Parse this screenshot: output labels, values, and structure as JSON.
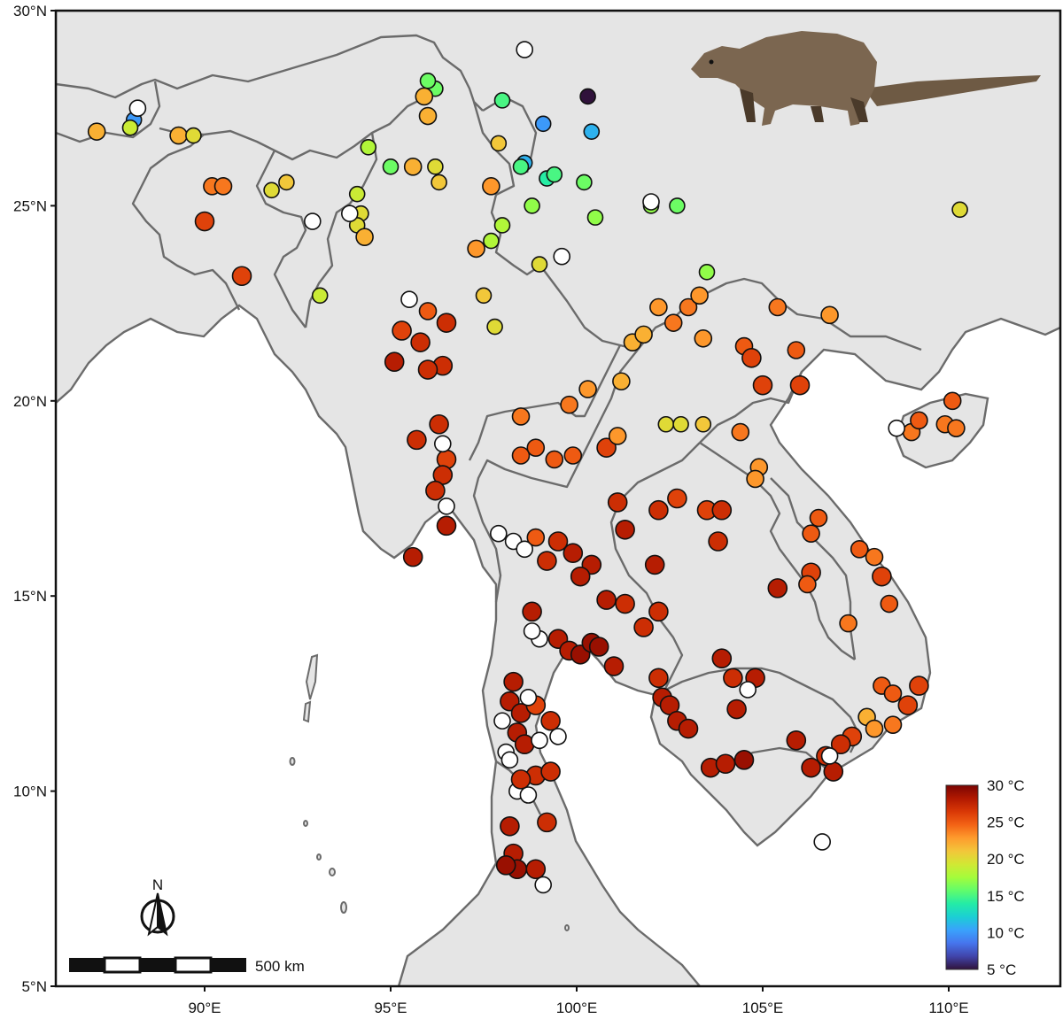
{
  "map": {
    "lat_ticks": [
      "30°N",
      "25°N",
      "20°N",
      "15°N",
      "10°N",
      "5°N"
    ],
    "lon_ticks": [
      "90°E",
      "95°E",
      "100°E",
      "105°E",
      "110°E"
    ],
    "extent": {
      "lon_min": 86,
      "lon_max": 113,
      "lat_min": 5,
      "lat_max": 30
    },
    "land_color": "#e5e5e5",
    "sea_color": "#ffffff",
    "border_color": "#6b6b6b"
  },
  "legend": {
    "labels": [
      "30 °C",
      "25 °C",
      "20 °C",
      "15 °C",
      "10 °C",
      "5 °C"
    ],
    "range": [
      5,
      30
    ],
    "colors": [
      "#30123b",
      "#4145ab",
      "#4675ed",
      "#39a2fc",
      "#1bcfd4",
      "#24eca6",
      "#61fc6c",
      "#a4fc3b",
      "#d1e834",
      "#f3c63a",
      "#fe9b2d",
      "#f36315",
      "#d93806",
      "#b11901",
      "#7a0402"
    ]
  },
  "scale_bar": {
    "label": "500 km"
  },
  "north_arrow": {
    "label": "N"
  },
  "points": [
    {
      "lon": 98.6,
      "lat": 29.0,
      "t": null
    },
    {
      "lon": 100.3,
      "lat": 27.8,
      "t": 5
    },
    {
      "lon": 99.1,
      "lat": 27.1,
      "t": 10
    },
    {
      "lon": 100.4,
      "lat": 26.9,
      "t": 11
    },
    {
      "lon": 98.6,
      "lat": 26.1,
      "t": 11
    },
    {
      "lon": 98.0,
      "lat": 27.7,
      "t": 15
    },
    {
      "lon": 96.2,
      "lat": 28.0,
      "t": 16
    },
    {
      "lon": 96.0,
      "lat": 28.2,
      "t": 16
    },
    {
      "lon": 95.9,
      "lat": 27.8,
      "t": 22
    },
    {
      "lon": 96.0,
      "lat": 27.3,
      "t": 22
    },
    {
      "lon": 95.0,
      "lat": 26.0,
      "t": 16
    },
    {
      "lon": 94.4,
      "lat": 26.5,
      "t": 18
    },
    {
      "lon": 96.2,
      "lat": 26.0,
      "t": 20
    },
    {
      "lon": 96.3,
      "lat": 25.6,
      "t": 21
    },
    {
      "lon": 95.6,
      "lat": 26.0,
      "t": 22
    },
    {
      "lon": 97.7,
      "lat": 25.5,
      "t": 23
    },
    {
      "lon": 97.9,
      "lat": 26.6,
      "t": 21
    },
    {
      "lon": 98.5,
      "lat": 26.0,
      "t": 15
    },
    {
      "lon": 99.2,
      "lat": 25.7,
      "t": 14
    },
    {
      "lon": 99.4,
      "lat": 25.8,
      "t": 15
    },
    {
      "lon": 100.2,
      "lat": 25.6,
      "t": 16
    },
    {
      "lon": 100.5,
      "lat": 24.7,
      "t": 17
    },
    {
      "lon": 98.8,
      "lat": 25.0,
      "t": 17
    },
    {
      "lon": 102.0,
      "lat": 25.0,
      "t": 17
    },
    {
      "lon": 102.0,
      "lat": 25.1,
      "t": null
    },
    {
      "lon": 102.7,
      "lat": 25.0,
      "t": 16
    },
    {
      "lon": 98.0,
      "lat": 24.5,
      "t": 18
    },
    {
      "lon": 97.7,
      "lat": 24.1,
      "t": 18
    },
    {
      "lon": 99.0,
      "lat": 23.5,
      "t": 20
    },
    {
      "lon": 99.6,
      "lat": 23.7,
      "t": null
    },
    {
      "lon": 97.3,
      "lat": 23.9,
      "t": 23
    },
    {
      "lon": 97.5,
      "lat": 22.7,
      "t": 21
    },
    {
      "lon": 97.8,
      "lat": 21.9,
      "t": 20
    },
    {
      "lon": 96.0,
      "lat": 22.3,
      "t": 25
    },
    {
      "lon": 96.5,
      "lat": 22.0,
      "t": 27
    },
    {
      "lon": 95.3,
      "lat": 21.8,
      "t": 26
    },
    {
      "lon": 95.5,
      "lat": 22.6,
      "t": null
    },
    {
      "lon": 94.1,
      "lat": 25.3,
      "t": 19
    },
    {
      "lon": 94.2,
      "lat": 24.8,
      "t": 20
    },
    {
      "lon": 94.1,
      "lat": 24.5,
      "t": 20
    },
    {
      "lon": 94.3,
      "lat": 24.2,
      "t": 22
    },
    {
      "lon": 93.9,
      "lat": 24.8,
      "t": null
    },
    {
      "lon": 92.9,
      "lat": 24.6,
      "t": null
    },
    {
      "lon": 93.1,
      "lat": 22.7,
      "t": 19
    },
    {
      "lon": 88.1,
      "lat": 27.2,
      "t": 10
    },
    {
      "lon": 88.2,
      "lat": 27.5,
      "t": null
    },
    {
      "lon": 88.0,
      "lat": 27.0,
      "t": 19
    },
    {
      "lon": 87.1,
      "lat": 26.9,
      "t": 22
    },
    {
      "lon": 89.3,
      "lat": 26.8,
      "t": 22
    },
    {
      "lon": 89.7,
      "lat": 26.8,
      "t": 20
    },
    {
      "lon": 90.2,
      "lat": 25.5,
      "t": 24
    },
    {
      "lon": 90.5,
      "lat": 25.5,
      "t": 24
    },
    {
      "lon": 90.0,
      "lat": 24.6,
      "t": 26
    },
    {
      "lon": 91.8,
      "lat": 25.4,
      "t": 20
    },
    {
      "lon": 92.2,
      "lat": 25.6,
      "t": 21
    },
    {
      "lon": 91.0,
      "lat": 23.2,
      "t": 26
    },
    {
      "lon": 96.4,
      "lat": 20.9,
      "t": 27
    },
    {
      "lon": 96.0,
      "lat": 20.8,
      "t": 27
    },
    {
      "lon": 95.1,
      "lat": 21.0,
      "t": 28
    },
    {
      "lon": 95.8,
      "lat": 21.5,
      "t": 27
    },
    {
      "lon": 96.3,
      "lat": 19.4,
      "t": 27
    },
    {
      "lon": 95.7,
      "lat": 19.0,
      "t": 27
    },
    {
      "lon": 96.5,
      "lat": 18.5,
      "t": 26
    },
    {
      "lon": 96.4,
      "lat": 18.1,
      "t": 27
    },
    {
      "lon": 96.2,
      "lat": 17.7,
      "t": 27
    },
    {
      "lon": 96.5,
      "lat": 16.8,
      "t": 28
    },
    {
      "lon": 95.6,
      "lat": 16.0,
      "t": 28
    },
    {
      "lon": 96.4,
      "lat": 18.9,
      "t": null
    },
    {
      "lon": 96.5,
      "lat": 17.3,
      "t": null
    },
    {
      "lon": 97.9,
      "lat": 16.6,
      "t": null
    },
    {
      "lon": 98.3,
      "lat": 16.4,
      "t": null
    },
    {
      "lon": 98.6,
      "lat": 16.2,
      "t": null
    },
    {
      "lon": 98.9,
      "lat": 16.5,
      "t": 25
    },
    {
      "lon": 98.5,
      "lat": 18.6,
      "t": 25
    },
    {
      "lon": 98.9,
      "lat": 18.8,
      "t": 25
    },
    {
      "lon": 99.4,
      "lat": 18.5,
      "t": 25
    },
    {
      "lon": 99.9,
      "lat": 18.6,
      "t": 25
    },
    {
      "lon": 98.5,
      "lat": 19.6,
      "t": 24
    },
    {
      "lon": 99.8,
      "lat": 19.9,
      "t": 24
    },
    {
      "lon": 100.3,
      "lat": 20.3,
      "t": 23
    },
    {
      "lon": 100.8,
      "lat": 18.8,
      "t": 26
    },
    {
      "lon": 101.1,
      "lat": 19.1,
      "t": 23
    },
    {
      "lon": 101.2,
      "lat": 20.5,
      "t": 22
    },
    {
      "lon": 101.5,
      "lat": 21.5,
      "t": 22
    },
    {
      "lon": 101.8,
      "lat": 21.7,
      "t": 22
    },
    {
      "lon": 102.2,
      "lat": 22.4,
      "t": 23
    },
    {
      "lon": 102.6,
      "lat": 22.0,
      "t": 24
    },
    {
      "lon": 103.0,
      "lat": 22.4,
      "t": 24
    },
    {
      "lon": 103.5,
      "lat": 23.3,
      "t": 17
    },
    {
      "lon": 103.3,
      "lat": 22.7,
      "t": 23
    },
    {
      "lon": 103.4,
      "lat": 21.6,
      "t": 23
    },
    {
      "lon": 104.5,
      "lat": 21.4,
      "t": 25
    },
    {
      "lon": 104.7,
      "lat": 21.1,
      "t": 26
    },
    {
      "lon": 105.0,
      "lat": 20.4,
      "t": 26
    },
    {
      "lon": 105.4,
      "lat": 22.4,
      "t": 24
    },
    {
      "lon": 105.9,
      "lat": 21.3,
      "t": 25
    },
    {
      "lon": 106.0,
      "lat": 20.4,
      "t": 26
    },
    {
      "lon": 106.8,
      "lat": 22.2,
      "t": 23
    },
    {
      "lon": 102.4,
      "lat": 19.4,
      "t": 20
    },
    {
      "lon": 102.8,
      "lat": 19.4,
      "t": 20
    },
    {
      "lon": 103.4,
      "lat": 19.4,
      "t": 21
    },
    {
      "lon": 104.4,
      "lat": 19.2,
      "t": 24
    },
    {
      "lon": 104.9,
      "lat": 18.3,
      "t": 23
    },
    {
      "lon": 104.8,
      "lat": 18.0,
      "t": 23
    },
    {
      "lon": 101.1,
      "lat": 17.4,
      "t": 27
    },
    {
      "lon": 101.3,
      "lat": 16.7,
      "t": 28
    },
    {
      "lon": 102.2,
      "lat": 17.2,
      "t": 27
    },
    {
      "lon": 102.7,
      "lat": 17.5,
      "t": 26
    },
    {
      "lon": 103.5,
      "lat": 17.2,
      "t": 26
    },
    {
      "lon": 103.9,
      "lat": 17.2,
      "t": 27
    },
    {
      "lon": 103.8,
      "lat": 16.4,
      "t": 27
    },
    {
      "lon": 100.4,
      "lat": 15.8,
      "t": 28
    },
    {
      "lon": 99.9,
      "lat": 16.1,
      "t": 28
    },
    {
      "lon": 100.1,
      "lat": 15.5,
      "t": 28
    },
    {
      "lon": 99.2,
      "lat": 15.9,
      "t": 27
    },
    {
      "lon": 99.5,
      "lat": 16.4,
      "t": 27
    },
    {
      "lon": 100.8,
      "lat": 14.9,
      "t": 28
    },
    {
      "lon": 101.3,
      "lat": 14.8,
      "t": 27
    },
    {
      "lon": 101.8,
      "lat": 14.2,
      "t": 27
    },
    {
      "lon": 102.1,
      "lat": 15.8,
      "t": 28
    },
    {
      "lon": 102.2,
      "lat": 14.6,
      "t": 27
    },
    {
      "lon": 98.8,
      "lat": 14.6,
      "t": 28
    },
    {
      "lon": 99.5,
      "lat": 13.9,
      "t": 28
    },
    {
      "lon": 99.8,
      "lat": 13.6,
      "t": 28
    },
    {
      "lon": 100.1,
      "lat": 13.5,
      "t": 29
    },
    {
      "lon": 100.4,
      "lat": 13.8,
      "t": 29
    },
    {
      "lon": 100.6,
      "lat": 13.7,
      "t": 29
    },
    {
      "lon": 101.0,
      "lat": 13.2,
      "t": 28
    },
    {
      "lon": 102.2,
      "lat": 12.9,
      "t": 27
    },
    {
      "lon": 102.3,
      "lat": 12.4,
      "t": 28
    },
    {
      "lon": 102.5,
      "lat": 12.2,
      "t": 28
    },
    {
      "lon": 102.7,
      "lat": 11.8,
      "t": 28
    },
    {
      "lon": 103.0,
      "lat": 11.6,
      "t": 28
    },
    {
      "lon": 103.9,
      "lat": 13.4,
      "t": 28
    },
    {
      "lon": 104.2,
      "lat": 12.9,
      "t": 27
    },
    {
      "lon": 104.8,
      "lat": 12.9,
      "t": 28
    },
    {
      "lon": 104.6,
      "lat": 12.6,
      "t": null
    },
    {
      "lon": 104.3,
      "lat": 12.1,
      "t": 28
    },
    {
      "lon": 105.4,
      "lat": 15.2,
      "t": 28
    },
    {
      "lon": 106.3,
      "lat": 15.6,
      "t": 26
    },
    {
      "lon": 106.2,
      "lat": 15.3,
      "t": 25
    },
    {
      "lon": 106.5,
      "lat": 17.0,
      "t": 25
    },
    {
      "lon": 106.3,
      "lat": 16.6,
      "t": 25
    },
    {
      "lon": 107.6,
      "lat": 16.2,
      "t": 25
    },
    {
      "lon": 108.0,
      "lat": 16.0,
      "t": 24
    },
    {
      "lon": 108.2,
      "lat": 15.5,
      "t": 26
    },
    {
      "lon": 108.4,
      "lat": 14.8,
      "t": 25
    },
    {
      "lon": 107.3,
      "lat": 14.3,
      "t": 24
    },
    {
      "lon": 108.2,
      "lat": 12.7,
      "t": 25
    },
    {
      "lon": 108.5,
      "lat": 12.5,
      "t": 25
    },
    {
      "lon": 108.9,
      "lat": 12.2,
      "t": 26
    },
    {
      "lon": 109.2,
      "lat": 12.7,
      "t": 26
    },
    {
      "lon": 107.8,
      "lat": 11.9,
      "t": 22
    },
    {
      "lon": 108.0,
      "lat": 11.6,
      "t": 23
    },
    {
      "lon": 108.5,
      "lat": 11.7,
      "t": 24
    },
    {
      "lon": 107.4,
      "lat": 11.4,
      "t": 26
    },
    {
      "lon": 107.1,
      "lat": 11.2,
      "t": 27
    },
    {
      "lon": 106.7,
      "lat": 10.9,
      "t": 27
    },
    {
      "lon": 106.9,
      "lat": 10.5,
      "t": 28
    },
    {
      "lon": 106.3,
      "lat": 10.6,
      "t": 28
    },
    {
      "lon": 106.8,
      "lat": 10.9,
      "t": null
    },
    {
      "lon": 105.9,
      "lat": 11.3,
      "t": 28
    },
    {
      "lon": 103.6,
      "lat": 10.6,
      "t": 28
    },
    {
      "lon": 104.0,
      "lat": 10.7,
      "t": 28
    },
    {
      "lon": 104.5,
      "lat": 10.8,
      "t": 29
    },
    {
      "lon": 106.6,
      "lat": 8.7,
      "t": null
    },
    {
      "lon": 109.0,
      "lat": 19.2,
      "t": 24
    },
    {
      "lon": 109.2,
      "lat": 19.5,
      "t": 25
    },
    {
      "lon": 109.9,
      "lat": 19.4,
      "t": 24
    },
    {
      "lon": 110.2,
      "lat": 19.3,
      "t": 24
    },
    {
      "lon": 110.1,
      "lat": 20.0,
      "t": 25
    },
    {
      "lon": 108.6,
      "lat": 19.3,
      "t": null
    },
    {
      "lon": 110.3,
      "lat": 24.9,
      "t": 20
    },
    {
      "lon": 98.2,
      "lat": 12.3,
      "t": 28
    },
    {
      "lon": 98.3,
      "lat": 12.8,
      "t": 28
    },
    {
      "lon": 98.5,
      "lat": 12.0,
      "t": 28
    },
    {
      "lon": 98.4,
      "lat": 11.5,
      "t": 28
    },
    {
      "lon": 98.6,
      "lat": 11.2,
      "t": 28
    },
    {
      "lon": 98.9,
      "lat": 12.2,
      "t": 26
    },
    {
      "lon": 99.3,
      "lat": 11.8,
      "t": 27
    },
    {
      "lon": 99.0,
      "lat": 11.3,
      "t": null
    },
    {
      "lon": 99.5,
      "lat": 11.4,
      "t": null
    },
    {
      "lon": 98.0,
      "lat": 11.8,
      "t": null
    },
    {
      "lon": 98.1,
      "lat": 11.0,
      "t": null
    },
    {
      "lon": 98.7,
      "lat": 12.4,
      "t": null
    },
    {
      "lon": 99.0,
      "lat": 13.9,
      "t": null
    },
    {
      "lon": 98.8,
      "lat": 14.1,
      "t": null
    },
    {
      "lon": 98.2,
      "lat": 10.8,
      "t": null
    },
    {
      "lon": 98.4,
      "lat": 10.0,
      "t": null
    },
    {
      "lon": 98.7,
      "lat": 9.9,
      "t": null
    },
    {
      "lon": 98.9,
      "lat": 10.4,
      "t": 27
    },
    {
      "lon": 99.3,
      "lat": 10.5,
      "t": 27
    },
    {
      "lon": 98.5,
      "lat": 10.3,
      "t": 27
    },
    {
      "lon": 99.2,
      "lat": 9.2,
      "t": 27
    },
    {
      "lon": 98.2,
      "lat": 9.1,
      "t": 28
    },
    {
      "lon": 98.3,
      "lat": 8.4,
      "t": 28
    },
    {
      "lon": 98.4,
      "lat": 8.0,
      "t": 29
    },
    {
      "lon": 98.9,
      "lat": 8.0,
      "t": 28
    },
    {
      "lon": 98.1,
      "lat": 8.1,
      "t": 29
    },
    {
      "lon": 99.1,
      "lat": 7.6,
      "t": null
    }
  ]
}
